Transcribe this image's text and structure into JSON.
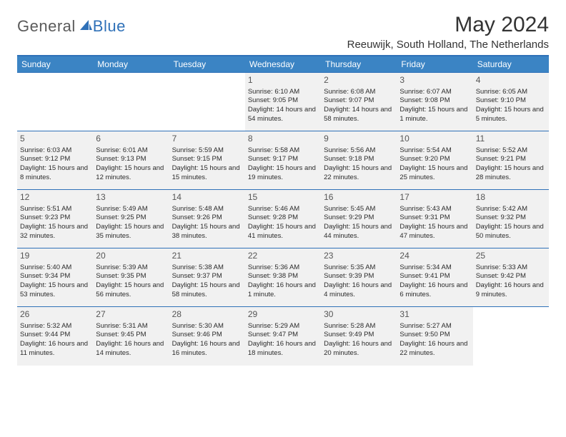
{
  "logo": {
    "text1": "General",
    "text2": "Blue"
  },
  "title": "May 2024",
  "location": "Reeuwijk, South Holland, The Netherlands",
  "colors": {
    "header_bg": "#3b84c4",
    "header_border": "#2f71b8",
    "cell_bg": "#f1f1f1",
    "text": "#2b2b2b",
    "logo_gray": "#5a5a5a",
    "logo_blue": "#2f71b8"
  },
  "daynames": [
    "Sunday",
    "Monday",
    "Tuesday",
    "Wednesday",
    "Thursday",
    "Friday",
    "Saturday"
  ],
  "weeks": [
    [
      null,
      null,
      null,
      {
        "n": "1",
        "sr": "6:10 AM",
        "ss": "9:05 PM",
        "dl": "14 hours and 54 minutes."
      },
      {
        "n": "2",
        "sr": "6:08 AM",
        "ss": "9:07 PM",
        "dl": "14 hours and 58 minutes."
      },
      {
        "n": "3",
        "sr": "6:07 AM",
        "ss": "9:08 PM",
        "dl": "15 hours and 1 minute."
      },
      {
        "n": "4",
        "sr": "6:05 AM",
        "ss": "9:10 PM",
        "dl": "15 hours and 5 minutes."
      }
    ],
    [
      {
        "n": "5",
        "sr": "6:03 AM",
        "ss": "9:12 PM",
        "dl": "15 hours and 8 minutes."
      },
      {
        "n": "6",
        "sr": "6:01 AM",
        "ss": "9:13 PM",
        "dl": "15 hours and 12 minutes."
      },
      {
        "n": "7",
        "sr": "5:59 AM",
        "ss": "9:15 PM",
        "dl": "15 hours and 15 minutes."
      },
      {
        "n": "8",
        "sr": "5:58 AM",
        "ss": "9:17 PM",
        "dl": "15 hours and 19 minutes."
      },
      {
        "n": "9",
        "sr": "5:56 AM",
        "ss": "9:18 PM",
        "dl": "15 hours and 22 minutes."
      },
      {
        "n": "10",
        "sr": "5:54 AM",
        "ss": "9:20 PM",
        "dl": "15 hours and 25 minutes."
      },
      {
        "n": "11",
        "sr": "5:52 AM",
        "ss": "9:21 PM",
        "dl": "15 hours and 28 minutes."
      }
    ],
    [
      {
        "n": "12",
        "sr": "5:51 AM",
        "ss": "9:23 PM",
        "dl": "15 hours and 32 minutes."
      },
      {
        "n": "13",
        "sr": "5:49 AM",
        "ss": "9:25 PM",
        "dl": "15 hours and 35 minutes."
      },
      {
        "n": "14",
        "sr": "5:48 AM",
        "ss": "9:26 PM",
        "dl": "15 hours and 38 minutes."
      },
      {
        "n": "15",
        "sr": "5:46 AM",
        "ss": "9:28 PM",
        "dl": "15 hours and 41 minutes."
      },
      {
        "n": "16",
        "sr": "5:45 AM",
        "ss": "9:29 PM",
        "dl": "15 hours and 44 minutes."
      },
      {
        "n": "17",
        "sr": "5:43 AM",
        "ss": "9:31 PM",
        "dl": "15 hours and 47 minutes."
      },
      {
        "n": "18",
        "sr": "5:42 AM",
        "ss": "9:32 PM",
        "dl": "15 hours and 50 minutes."
      }
    ],
    [
      {
        "n": "19",
        "sr": "5:40 AM",
        "ss": "9:34 PM",
        "dl": "15 hours and 53 minutes."
      },
      {
        "n": "20",
        "sr": "5:39 AM",
        "ss": "9:35 PM",
        "dl": "15 hours and 56 minutes."
      },
      {
        "n": "21",
        "sr": "5:38 AM",
        "ss": "9:37 PM",
        "dl": "15 hours and 58 minutes."
      },
      {
        "n": "22",
        "sr": "5:36 AM",
        "ss": "9:38 PM",
        "dl": "16 hours and 1 minute."
      },
      {
        "n": "23",
        "sr": "5:35 AM",
        "ss": "9:39 PM",
        "dl": "16 hours and 4 minutes."
      },
      {
        "n": "24",
        "sr": "5:34 AM",
        "ss": "9:41 PM",
        "dl": "16 hours and 6 minutes."
      },
      {
        "n": "25",
        "sr": "5:33 AM",
        "ss": "9:42 PM",
        "dl": "16 hours and 9 minutes."
      }
    ],
    [
      {
        "n": "26",
        "sr": "5:32 AM",
        "ss": "9:44 PM",
        "dl": "16 hours and 11 minutes."
      },
      {
        "n": "27",
        "sr": "5:31 AM",
        "ss": "9:45 PM",
        "dl": "16 hours and 14 minutes."
      },
      {
        "n": "28",
        "sr": "5:30 AM",
        "ss": "9:46 PM",
        "dl": "16 hours and 16 minutes."
      },
      {
        "n": "29",
        "sr": "5:29 AM",
        "ss": "9:47 PM",
        "dl": "16 hours and 18 minutes."
      },
      {
        "n": "30",
        "sr": "5:28 AM",
        "ss": "9:49 PM",
        "dl": "16 hours and 20 minutes."
      },
      {
        "n": "31",
        "sr": "5:27 AM",
        "ss": "9:50 PM",
        "dl": "16 hours and 22 minutes."
      },
      null
    ]
  ],
  "labels": {
    "sunrise": "Sunrise:",
    "sunset": "Sunset:",
    "daylight": "Daylight:"
  }
}
